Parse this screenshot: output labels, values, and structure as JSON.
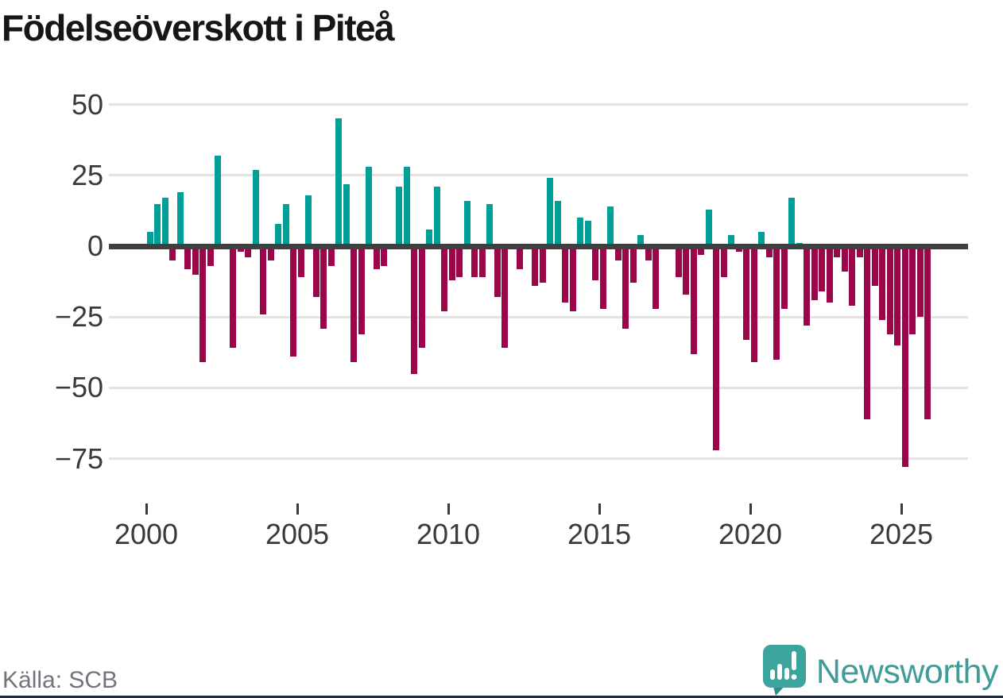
{
  "title": "Födelseöverskott i Piteå",
  "source": "Källa: SCB",
  "branding": {
    "name": "Newsworthy",
    "icon": "newsworthy-speech-bubble-bar-chart-icon",
    "text_color": "#3e9d96",
    "icon_color": "#3aa49d",
    "icon_tail_color": "#2f8b85"
  },
  "colors": {
    "positive_bar": "#00a099",
    "negative_bar": "#9a0649",
    "axis": "#404040",
    "gridline": "#e3e3e3",
    "title_text": "#161616",
    "tick_text": "#3a3a3a",
    "source_text": "#73737c",
    "footer_strip": "#232c38"
  },
  "chart_data": {
    "type": "bar",
    "title": "Födelseöverskott i Piteå",
    "x_unit": "quarter",
    "xlabel": "",
    "ylabel": "",
    "grid": "horizontal",
    "ylim": [
      -85,
      55
    ],
    "y_ticks": [
      50,
      25,
      0,
      -25,
      -50,
      -75
    ],
    "y_tick_labels": [
      "50",
      "25",
      "0",
      "−25",
      "−50",
      "−75"
    ],
    "x_tick_years": [
      2000,
      2005,
      2010,
      2015,
      2020,
      2025
    ],
    "x_tick_labels": [
      "2000",
      "2005",
      "2010",
      "2015",
      "2020",
      "2025"
    ],
    "series": [
      {
        "year": 2000,
        "values": [
          5,
          15,
          17,
          -5
        ]
      },
      {
        "year": 2001,
        "values": [
          19,
          -8,
          -10,
          -41
        ]
      },
      {
        "year": 2002,
        "values": [
          -7,
          32,
          -1,
          -36
        ]
      },
      {
        "year": 2003,
        "values": [
          -2,
          -4,
          27,
          -24
        ]
      },
      {
        "year": 2004,
        "values": [
          -5,
          8,
          15,
          -39
        ]
      },
      {
        "year": 2005,
        "values": [
          -11,
          18,
          -18,
          -29
        ]
      },
      {
        "year": 2006,
        "values": [
          -7,
          45,
          22,
          -41
        ]
      },
      {
        "year": 2007,
        "values": [
          -31,
          28,
          -8,
          -7
        ]
      },
      {
        "year": 2008,
        "values": [
          0,
          21,
          28,
          -45
        ]
      },
      {
        "year": 2009,
        "values": [
          -36,
          6,
          21,
          -23
        ]
      },
      {
        "year": 2010,
        "values": [
          -12,
          -11,
          16,
          -11
        ]
      },
      {
        "year": 2011,
        "values": [
          -11,
          15,
          -18,
          -36
        ]
      },
      {
        "year": 2012,
        "values": [
          0,
          -8,
          0,
          -14
        ]
      },
      {
        "year": 2013,
        "values": [
          -13,
          24,
          16,
          -20
        ]
      },
      {
        "year": 2014,
        "values": [
          -23,
          10,
          9,
          -12
        ]
      },
      {
        "year": 2015,
        "values": [
          -22,
          14,
          -5,
          -29
        ]
      },
      {
        "year": 2016,
        "values": [
          -13,
          4,
          -5,
          -22
        ]
      },
      {
        "year": 2017,
        "values": [
          -1,
          -1,
          -11,
          -17
        ]
      },
      {
        "year": 2018,
        "values": [
          -38,
          -3,
          13,
          -72
        ]
      },
      {
        "year": 2019,
        "values": [
          -11,
          4,
          -2,
          -33
        ]
      },
      {
        "year": 2020,
        "values": [
          -41,
          5,
          -4,
          -40
        ]
      },
      {
        "year": 2021,
        "values": [
          -22,
          17,
          1,
          -28
        ]
      },
      {
        "year": 2022,
        "values": [
          -19,
          -16,
          -20,
          -4
        ]
      },
      {
        "year": 2023,
        "values": [
          -9,
          -21,
          -4,
          -61
        ]
      },
      {
        "year": 2024,
        "values": [
          -14,
          -26,
          -31,
          -35
        ]
      },
      {
        "year": 2025,
        "values": [
          -78,
          -31,
          -25,
          -61
        ]
      }
    ]
  }
}
